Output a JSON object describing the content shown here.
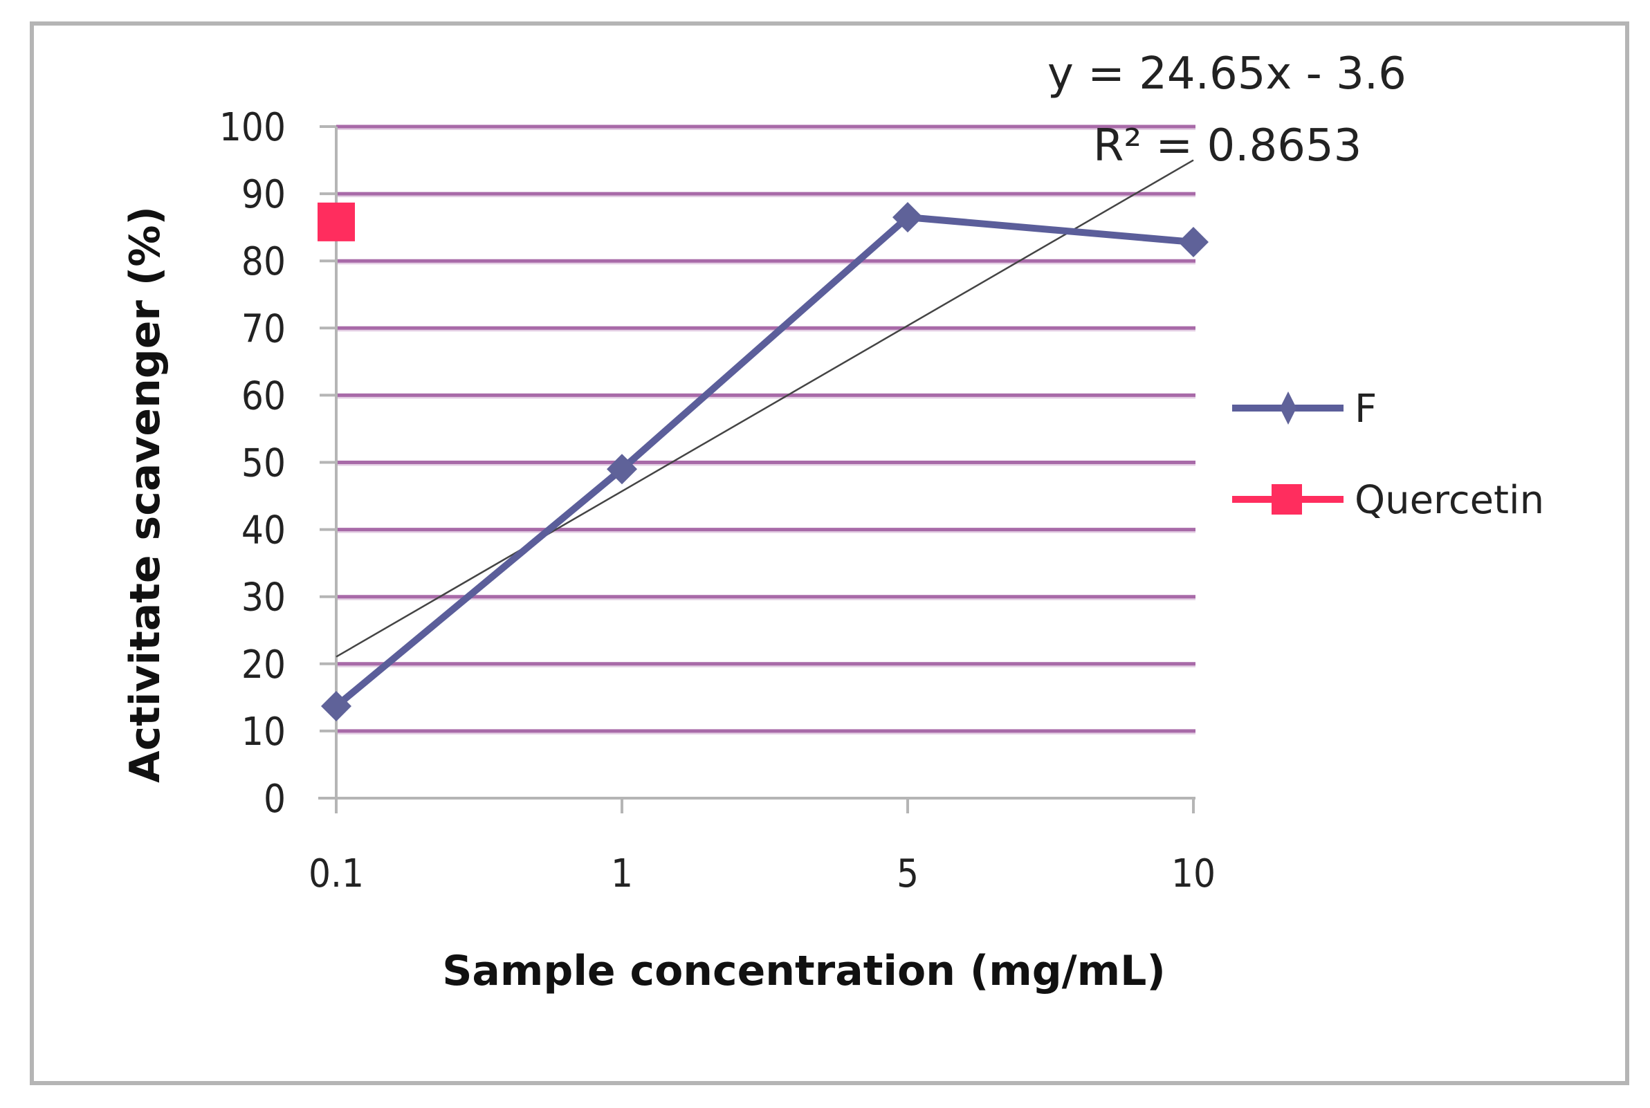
{
  "chart_data": {
    "type": "line",
    "title": "",
    "xlabel": "Sample concentration (mg/mL)",
    "ylabel": "Activitate scavenger (%)",
    "categories": [
      "0.1",
      "1",
      "5",
      "10"
    ],
    "series": [
      {
        "name": "F",
        "values": [
          13.7,
          49,
          86.5,
          82.8
        ],
        "color": "#5b5e9a",
        "marker": "diamond"
      },
      {
        "name": "Quercetin",
        "values": [
          85.8,
          null,
          null,
          null
        ],
        "color": "#ff2d5e",
        "marker": "square"
      }
    ],
    "trendline": {
      "series": "F",
      "type": "linear",
      "equation": "y = 24.65x - 3.6",
      "r_squared_label": "R² = 0.8653",
      "slope": 24.65,
      "intercept": -3.6,
      "r2": 0.8653,
      "color": "#444444"
    },
    "yticks": [
      "0",
      "10",
      "20",
      "30",
      "40",
      "50",
      "60",
      "70",
      "80",
      "90",
      "100"
    ],
    "ylim": [
      0,
      100
    ],
    "grid": true,
    "grid_color": "#a86aa8",
    "legend_position": "right"
  },
  "labels": {
    "equation": "y = 24.65x - 3.6",
    "r2": "R² = 0.8653",
    "legend_f": "F",
    "legend_quercetin": "Quercetin",
    "xlabel": "Sample concentration (mg/mL)",
    "ylabel": "Activitate scavenger (%)"
  }
}
